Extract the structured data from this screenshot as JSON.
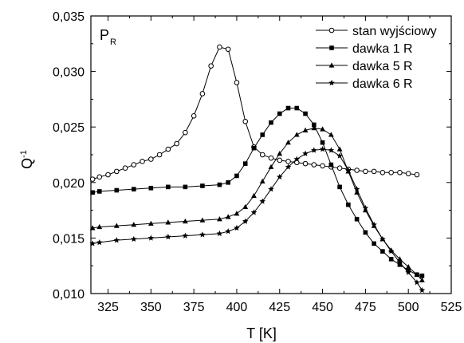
{
  "chart_data": {
    "type": "line",
    "title": "",
    "xlabel": "T [K]",
    "ylabel": "Q",
    "ylabel_superscript": "-1",
    "annotation": {
      "main": "P",
      "subscript": "R"
    },
    "xlim": [
      315,
      525
    ],
    "ylim": [
      0.01,
      0.035
    ],
    "x_ticks": [
      325,
      350,
      375,
      400,
      425,
      450,
      475,
      500,
      525
    ],
    "x_tick_labels": [
      "325",
      "350",
      "375",
      "400",
      "425",
      "450",
      "475",
      "500",
      "525"
    ],
    "y_ticks": [
      0.01,
      0.015,
      0.02,
      0.025,
      0.03,
      0.035
    ],
    "y_tick_labels": [
      "0,010",
      "0,015",
      "0,020",
      "0,025",
      "0,030",
      "0,035"
    ],
    "grid": false,
    "legend_position": "top-right",
    "series": [
      {
        "name": "stan wyjściowy",
        "marker": "circle-open",
        "points": [
          [
            316,
            0.0203
          ],
          [
            320,
            0.0205
          ],
          [
            325,
            0.0207
          ],
          [
            330,
            0.021
          ],
          [
            335,
            0.0213
          ],
          [
            340,
            0.0216
          ],
          [
            345,
            0.0219
          ],
          [
            350,
            0.0221
          ],
          [
            355,
            0.0225
          ],
          [
            360,
            0.023
          ],
          [
            365,
            0.0235
          ],
          [
            370,
            0.0245
          ],
          [
            375,
            0.026
          ],
          [
            380,
            0.028
          ],
          [
            385,
            0.0305
          ],
          [
            390,
            0.0322
          ],
          [
            395,
            0.032
          ],
          [
            400,
            0.029
          ],
          [
            405,
            0.0255
          ],
          [
            410,
            0.0232
          ],
          [
            415,
            0.0225
          ],
          [
            420,
            0.0222
          ],
          [
            425,
            0.022
          ],
          [
            430,
            0.0219
          ],
          [
            435,
            0.0218
          ],
          [
            440,
            0.0217
          ],
          [
            445,
            0.0216
          ],
          [
            450,
            0.0215
          ],
          [
            455,
            0.0214
          ],
          [
            460,
            0.0213
          ],
          [
            465,
            0.0212
          ],
          [
            470,
            0.0211
          ],
          [
            475,
            0.021
          ],
          [
            480,
            0.021
          ],
          [
            485,
            0.0209
          ],
          [
            490,
            0.0209
          ],
          [
            495,
            0.0209
          ],
          [
            500,
            0.0208
          ],
          [
            505,
            0.0207
          ]
        ]
      },
      {
        "name": "dawka 1 R",
        "marker": "square-filled",
        "points": [
          [
            316,
            0.0191
          ],
          [
            320,
            0.0192
          ],
          [
            330,
            0.0193
          ],
          [
            340,
            0.0194
          ],
          [
            350,
            0.0195
          ],
          [
            360,
            0.0196
          ],
          [
            370,
            0.0196
          ],
          [
            380,
            0.0197
          ],
          [
            390,
            0.0198
          ],
          [
            395,
            0.02
          ],
          [
            400,
            0.0206
          ],
          [
            405,
            0.0217
          ],
          [
            410,
            0.0231
          ],
          [
            415,
            0.0243
          ],
          [
            420,
            0.0254
          ],
          [
            425,
            0.0262
          ],
          [
            430,
            0.0267
          ],
          [
            435,
            0.0267
          ],
          [
            440,
            0.0262
          ],
          [
            445,
            0.0252
          ],
          [
            450,
            0.0236
          ],
          [
            455,
            0.0216
          ],
          [
            460,
            0.0196
          ],
          [
            465,
            0.018
          ],
          [
            470,
            0.0167
          ],
          [
            475,
            0.0155
          ],
          [
            480,
            0.0145
          ],
          [
            485,
            0.0138
          ],
          [
            490,
            0.0131
          ],
          [
            495,
            0.0126
          ],
          [
            500,
            0.0121
          ],
          [
            505,
            0.0117
          ],
          [
            508,
            0.0116
          ]
        ]
      },
      {
        "name": "dawka 5 R",
        "marker": "triangle-filled",
        "points": [
          [
            316,
            0.0159
          ],
          [
            320,
            0.016
          ],
          [
            330,
            0.0161
          ],
          [
            340,
            0.0162
          ],
          [
            350,
            0.0163
          ],
          [
            360,
            0.0164
          ],
          [
            370,
            0.0165
          ],
          [
            380,
            0.0166
          ],
          [
            390,
            0.0167
          ],
          [
            395,
            0.0169
          ],
          [
            400,
            0.0172
          ],
          [
            405,
            0.0178
          ],
          [
            410,
            0.0188
          ],
          [
            415,
            0.0201
          ],
          [
            420,
            0.0214
          ],
          [
            425,
            0.0226
          ],
          [
            430,
            0.0236
          ],
          [
            435,
            0.0243
          ],
          [
            440,
            0.0247
          ],
          [
            445,
            0.0249
          ],
          [
            450,
            0.0248
          ],
          [
            455,
            0.0243
          ],
          [
            460,
            0.023
          ],
          [
            465,
            0.021
          ],
          [
            470,
            0.0191
          ],
          [
            475,
            0.0175
          ],
          [
            480,
            0.0161
          ],
          [
            485,
            0.0149
          ],
          [
            490,
            0.0139
          ],
          [
            495,
            0.0131
          ],
          [
            500,
            0.0124
          ],
          [
            505,
            0.0117
          ],
          [
            508,
            0.0112
          ]
        ]
      },
      {
        "name": "dawka 6 R",
        "marker": "star-filled",
        "points": [
          [
            316,
            0.0145
          ],
          [
            320,
            0.0146
          ],
          [
            330,
            0.0148
          ],
          [
            340,
            0.0149
          ],
          [
            350,
            0.015
          ],
          [
            360,
            0.0151
          ],
          [
            370,
            0.0152
          ],
          [
            380,
            0.0153
          ],
          [
            390,
            0.0154
          ],
          [
            395,
            0.0156
          ],
          [
            400,
            0.0159
          ],
          [
            405,
            0.0165
          ],
          [
            410,
            0.0173
          ],
          [
            415,
            0.0183
          ],
          [
            420,
            0.0194
          ],
          [
            425,
            0.0205
          ],
          [
            430,
            0.0214
          ],
          [
            435,
            0.0221
          ],
          [
            440,
            0.0226
          ],
          [
            445,
            0.0229
          ],
          [
            450,
            0.023
          ],
          [
            455,
            0.0229
          ],
          [
            460,
            0.0224
          ],
          [
            465,
            0.0211
          ],
          [
            470,
            0.0194
          ],
          [
            475,
            0.0177
          ],
          [
            480,
            0.0162
          ],
          [
            485,
            0.0149
          ],
          [
            490,
            0.0138
          ],
          [
            495,
            0.0128
          ],
          [
            500,
            0.0119
          ],
          [
            505,
            0.011
          ],
          [
            508,
            0.0103
          ]
        ]
      }
    ]
  }
}
